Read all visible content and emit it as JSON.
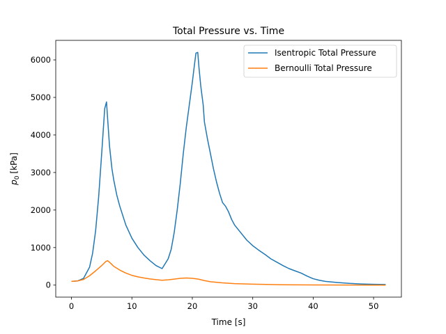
{
  "chart_data": {
    "type": "line",
    "title": "Total Pressure vs. Time",
    "xlabel": "Time [s]",
    "ylabel_symbol": "p",
    "ylabel_subscript": "0",
    "ylabel_unit": "[kPa]",
    "xlim": [
      -2.6,
      54.6
    ],
    "ylim": [
      -320,
      6520
    ],
    "xticks": [
      0,
      10,
      20,
      30,
      40,
      50
    ],
    "yticks": [
      0,
      1000,
      2000,
      3000,
      4000,
      5000,
      6000
    ],
    "legend_position": "top-right",
    "grid": false,
    "series": [
      {
        "name": "Isentropic Total Pressure",
        "color": "#1f77b4",
        "x": [
          0,
          1,
          2,
          3,
          3.5,
          4,
          4.5,
          5,
          5.5,
          5.8,
          6,
          6.3,
          6.7,
          7,
          7.5,
          8,
          9,
          10,
          11,
          12,
          13,
          14,
          15,
          16,
          16.5,
          17,
          17.5,
          18,
          18.5,
          19,
          19.5,
          20,
          20.3,
          20.6,
          20.9,
          21.1,
          21.4,
          21.8,
          22,
          22.5,
          23,
          23.5,
          24,
          24.5,
          25,
          25.5,
          26,
          26.5,
          27,
          28,
          29,
          30,
          31,
          32,
          33,
          34,
          35,
          36,
          37,
          38,
          39,
          40,
          41,
          42,
          44,
          46,
          48,
          50,
          52
        ],
        "values": [
          100,
          110,
          180,
          480,
          850,
          1450,
          2350,
          3500,
          4700,
          4880,
          4400,
          3700,
          3100,
          2800,
          2400,
          2100,
          1600,
          1250,
          1000,
          800,
          650,
          520,
          440,
          700,
          950,
          1400,
          2000,
          2700,
          3500,
          4200,
          4800,
          5400,
          5800,
          6180,
          6200,
          5800,
          5300,
          4800,
          4350,
          3900,
          3500,
          3100,
          2750,
          2450,
          2200,
          2100,
          1950,
          1750,
          1600,
          1400,
          1200,
          1050,
          930,
          820,
          700,
          610,
          520,
          440,
          380,
          320,
          240,
          170,
          130,
          100,
          70,
          45,
          30,
          20,
          15
        ]
      },
      {
        "name": "Bernoulli Total Pressure",
        "color": "#ff7f0e",
        "x": [
          0,
          1,
          2,
          3,
          4,
          5,
          5.7,
          6,
          6.5,
          7,
          8,
          9,
          10,
          11,
          12,
          13,
          14,
          15,
          16,
          17,
          18,
          19,
          20,
          21,
          22,
          23,
          25,
          27,
          30,
          35,
          40,
          45,
          50,
          52
        ],
        "values": [
          100,
          110,
          150,
          250,
          380,
          520,
          630,
          650,
          580,
          500,
          400,
          320,
          260,
          220,
          190,
          165,
          145,
          130,
          140,
          160,
          180,
          190,
          180,
          160,
          120,
          90,
          60,
          40,
          25,
          10,
          5,
          2,
          0,
          0
        ]
      }
    ]
  }
}
